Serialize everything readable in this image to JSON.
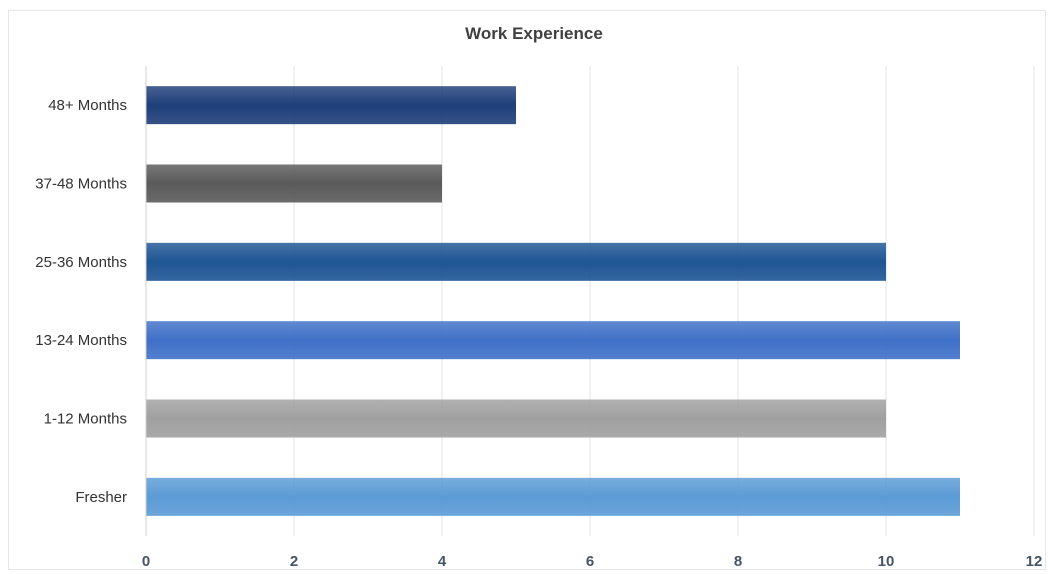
{
  "chart_data": {
    "type": "bar",
    "orientation": "horizontal",
    "title": "Work Experience",
    "categories": [
      "48+ Months",
      "37-48 Months",
      "25-36 Months",
      "13-24 Months",
      "1-12 Months",
      "Fresher"
    ],
    "values": [
      5,
      4,
      10,
      11,
      10,
      11
    ],
    "colors": [
      "#1f3f7a",
      "#5a5a5a",
      "#1e5594",
      "#3f70c8",
      "#a0a0a0",
      "#5b9bd5"
    ],
    "xlim": [
      0,
      12
    ],
    "xticks": [
      "0",
      "2",
      "4",
      "6",
      "8",
      "10",
      "12"
    ],
    "xlabel": "",
    "ylabel": "",
    "grid": true,
    "legend": "none"
  }
}
